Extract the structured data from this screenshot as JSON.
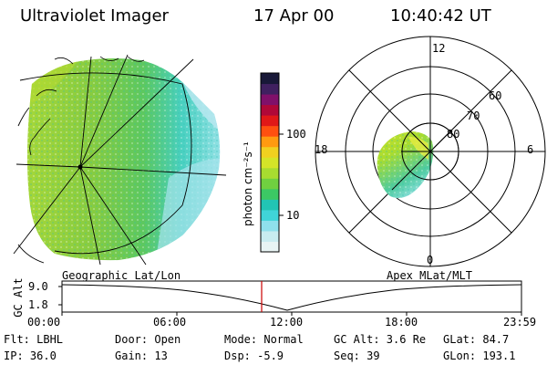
{
  "header": {
    "title": "Ultraviolet Imager",
    "date": "17 Apr 00",
    "time": "10:40:42 UT"
  },
  "colorbar": {
    "unit_label": "photon cm⁻²s⁻¹",
    "ticks": [
      "100",
      "10"
    ],
    "colors": [
      "#e8f4f4",
      "#c8ecf0",
      "#8fe0ec",
      "#40d4d8",
      "#22c4b4",
      "#3cc864",
      "#70d040",
      "#a8dc30",
      "#d4e428",
      "#f0d020",
      "#ff9a10",
      "#ff5010",
      "#e01818",
      "#b00838",
      "#80106a",
      "#402060",
      "#181838"
    ]
  },
  "left_panel": {
    "caption": "Geographic Lat/Lon"
  },
  "right_panel": {
    "caption": "Apex MLat/MLT",
    "mlt_labels": {
      "top": "12",
      "left": "18",
      "right": "6",
      "bottom": "0"
    },
    "lat_labels": [
      "60",
      "70",
      "80"
    ]
  },
  "altitude_plot": {
    "axis_title": "GC Alt",
    "y_ticks": [
      "9.0",
      "1.8"
    ],
    "x_ticks": [
      "00:00",
      "06:00",
      "12:00",
      "18:00",
      "23:59"
    ],
    "cursor_color": "#cc0000"
  },
  "info": {
    "flt": "Flt: LBHL",
    "door": "Door: Open",
    "mode": "Mode: Normal",
    "gc_alt": "GC Alt: 3.6 Re",
    "glat": "GLat:  84.7",
    "ip": "IP: 36.0",
    "gain": "Gain: 13",
    "dsp": "Dsp:   -5.9",
    "seq": "Seq: 39",
    "glon": "GLon: 193.1"
  }
}
